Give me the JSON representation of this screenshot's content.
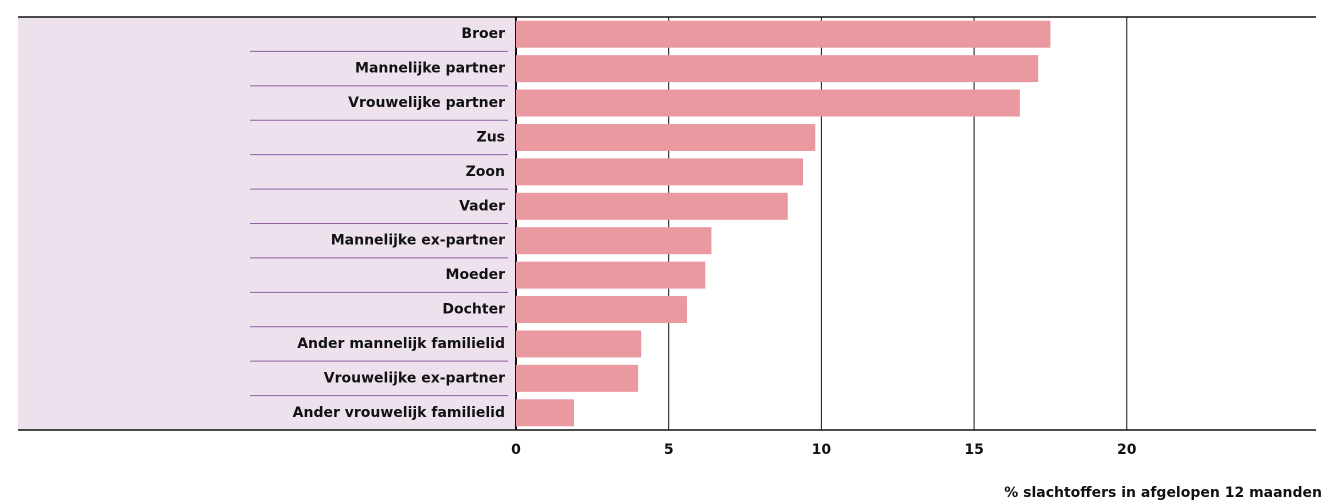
{
  "chart_data": {
    "type": "bar",
    "orientation": "horizontal",
    "categories": [
      "Broer",
      "Mannelijke partner",
      "Vrouwelijke partner",
      "Zus",
      "Zoon",
      "Vader",
      "Mannelijke ex-partner",
      "Moeder",
      "Dochter",
      "Ander mannelijk familielid",
      "Vrouwelijke ex-partner",
      "Ander vrouwelijk familielid"
    ],
    "values": [
      17.5,
      17.1,
      16.5,
      9.8,
      9.4,
      8.9,
      6.4,
      6.2,
      5.6,
      4.1,
      4.0,
      1.9
    ],
    "color": "#ea99a1",
    "xlim": [
      0,
      26
    ],
    "xticks": [
      0,
      5,
      10,
      15,
      20
    ],
    "grid": true,
    "xlabel": "% slachtoffers in afgelopen 12 maanden"
  }
}
